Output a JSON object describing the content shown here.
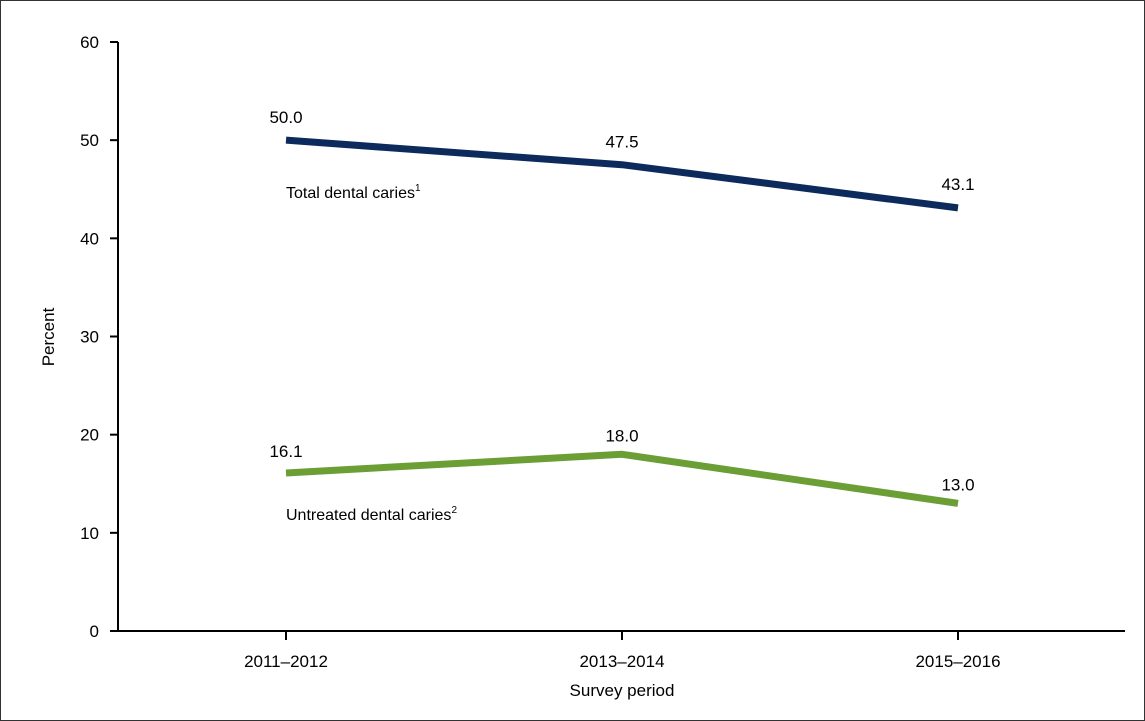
{
  "chart_data": {
    "type": "line",
    "xlabel": "Survey period",
    "ylabel": "Percent",
    "ylim": [
      0,
      60
    ],
    "yticks": [
      0,
      10,
      20,
      30,
      40,
      50,
      60
    ],
    "categories": [
      "2011–2012",
      "2013–2014",
      "2015–2016"
    ],
    "grid": false,
    "legend": "none; series labeled inline",
    "series": [
      {
        "name": "Total dental caries",
        "footnote": "1",
        "values": [
          50.0,
          47.5,
          43.1
        ],
        "labels": [
          "50.0",
          "47.5",
          "43.1"
        ],
        "color": "#0d2a5c"
      },
      {
        "name": "Untreated dental caries",
        "footnote": "2",
        "values": [
          16.1,
          18.0,
          13.0
        ],
        "labels": [
          "16.1",
          "18.0",
          "13.0"
        ],
        "color": "#6b9e35"
      }
    ]
  }
}
